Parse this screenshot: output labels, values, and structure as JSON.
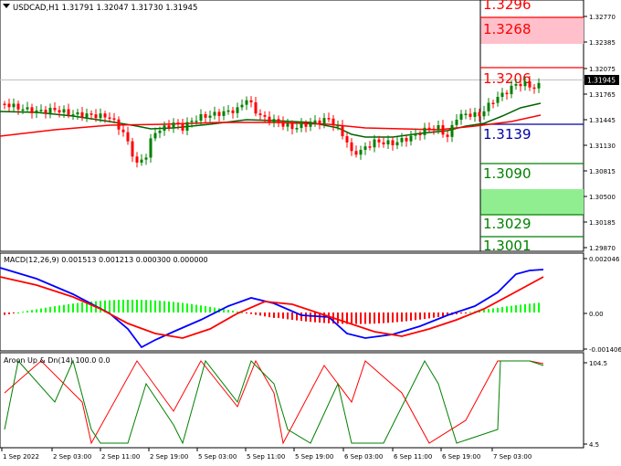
{
  "window": {
    "title": "USDCAD,H1  1.31791 1.32047 1.31730 1.31945",
    "collapse_icon": "triangle-down-icon"
  },
  "main_axis": {
    "ticks": [
      "1.32770",
      "1.32385",
      "1.32075",
      "1.31765",
      "1.31445",
      "1.31130",
      "1.30815",
      "1.30500",
      "1.30185",
      "1.29870"
    ],
    "price_tag": "1.31945"
  },
  "levels": [
    {
      "label": "1.3296",
      "color": "#ff0000"
    },
    {
      "label": "1.3268",
      "color": "#ff0000"
    },
    {
      "label": "1.3206",
      "color": "#ff0000"
    },
    {
      "label": "1.3139",
      "color": "#0000a0"
    },
    {
      "label": "1.3090",
      "color": "#008000"
    },
    {
      "label": "1.3029",
      "color": "#008000"
    },
    {
      "label": "1.3001",
      "color": "#008000"
    }
  ],
  "macd": {
    "title": "MACD(12,26,9) 0.001513 0.001213 0.000300 0.000000",
    "ticks": [
      "0.002046",
      "0.00",
      "-0.001406"
    ]
  },
  "aroon": {
    "title": "Aroon Up & Dn(14) 100.0 0.0",
    "ticks": [
      "104.5",
      "4.5"
    ]
  },
  "time_axis": [
    "1 Sep 2022",
    "2 Sep 03:00",
    "2 Sep 11:00",
    "2 Sep 19:00",
    "5 Sep 03:00",
    "5 Sep 11:00",
    "5 Sep 19:00",
    "6 Sep 03:00",
    "6 Sep 11:00",
    "6 Sep 19:00",
    "7 Sep 03:00"
  ],
  "colors": {
    "bull": "#008000",
    "bear": "#ff0000",
    "ma_fast": "#006400",
    "ma_slow": "#ff0000",
    "macd_line": "#0000ff",
    "signal_line": "#ff0000",
    "hist_pos": "#00ff00",
    "hist_neg": "#ff0000",
    "resistance_zone": "#ffc0cb",
    "support_zone": "#90ee90"
  }
}
